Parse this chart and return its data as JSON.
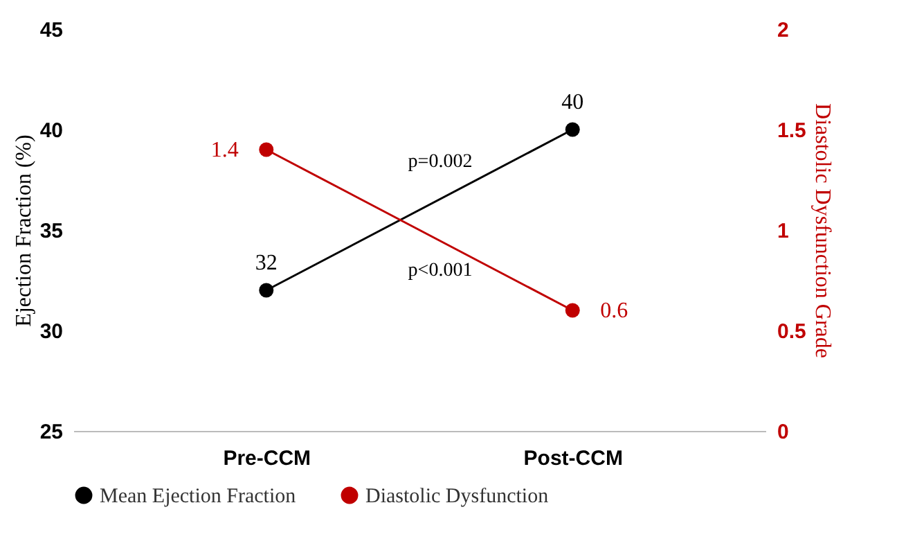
{
  "chart_data": {
    "type": "line",
    "categories": [
      "Pre-CCM",
      "Post-CCM"
    ],
    "series": [
      {
        "name": "Mean Ejection Fraction",
        "color": "#000000",
        "values": [
          32,
          40
        ]
      },
      {
        "name": "Diastolic Dysfunction",
        "color": "#c00000",
        "values": [
          1.4,
          0.6
        ],
        "axis": "y2"
      }
    ],
    "ylabel": "Ejection Fraction (%)",
    "y2label": "Diastolic Dysfunction Grade",
    "ylim": [
      25,
      45
    ],
    "yticks": [
      25,
      30,
      35,
      40,
      45
    ],
    "y2lim": [
      0,
      2
    ],
    "y2ticks": [
      0,
      0.5,
      1,
      1.5,
      2
    ],
    "annotations": [
      "p=0.002",
      "p<0.001"
    ],
    "data_labels": true,
    "marker": "circle",
    "legend": "bottom",
    "grid": false
  }
}
